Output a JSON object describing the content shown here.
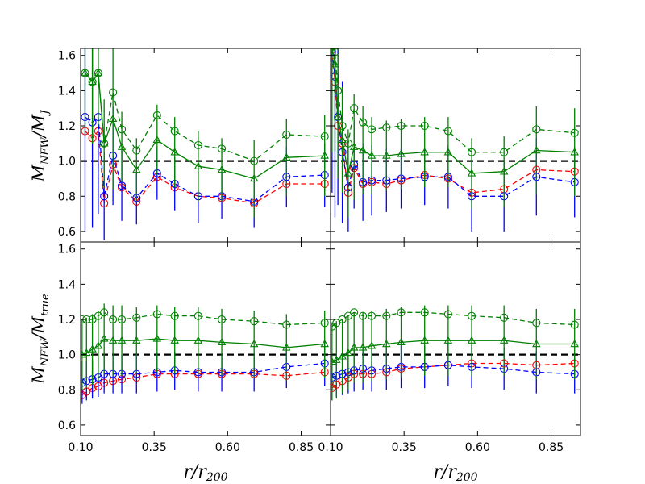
{
  "figure": {
    "x_tick_labels": [
      "0.10",
      "0.35",
      "0.60",
      "0.85"
    ],
    "y_tick_labels": [
      "0.6",
      "0.8",
      "1.0",
      "1.2",
      "1.4",
      "1.6"
    ],
    "ylabel_top": {
      "base": "M",
      "sub": "NFW",
      "slash": "/",
      "base2": "M",
      "sub2": "J"
    },
    "ylabel_bottom": {
      "base": "M",
      "sub": "NFW",
      "slash": "/",
      "base2": "M",
      "sub2": "true"
    },
    "xlabel": {
      "base": "r/r",
      "sub": "200"
    }
  },
  "chart_data": {
    "type": "line",
    "layout": "2x2 grid of panels sharing axes",
    "xlim": [
      0.1,
      0.95
    ],
    "ylim": [
      0.54,
      1.64
    ],
    "x_ticks": [
      0.1,
      0.35,
      0.6,
      0.85
    ],
    "y_ticks": [
      0.6,
      0.8,
      1.0,
      1.2,
      1.4,
      1.6
    ],
    "reference_line": {
      "y": 1.0,
      "style": "black dashed"
    },
    "colors": {
      "red": "#ff0000",
      "blue": "#0000ff",
      "green": "#008000"
    },
    "panels": [
      {
        "id": "top-left",
        "ylabel": "M_NFW/M_J",
        "x": [
          0.115,
          0.14,
          0.16,
          0.18,
          0.21,
          0.24,
          0.29,
          0.36,
          0.42,
          0.5,
          0.58,
          0.69,
          0.8,
          0.93
        ],
        "series": [
          {
            "name": "red circles dashed",
            "color": "#ff0000",
            "marker": "circle",
            "line": "dashed",
            "values": [
              1.17,
              1.13,
              1.17,
              0.76,
              0.98,
              0.85,
              0.77,
              0.91,
              0.85,
              0.8,
              0.79,
              0.76,
              0.87,
              0.87
            ],
            "err": []
          },
          {
            "name": "blue circles dashed",
            "color": "#0000ff",
            "marker": "circle",
            "line": "dashed",
            "values": [
              1.25,
              1.22,
              1.25,
              0.8,
              1.03,
              0.86,
              0.79,
              0.93,
              0.87,
              0.8,
              0.8,
              0.77,
              0.91,
              0.92
            ],
            "err": [
              0.65,
              0.6,
              0.55,
              0.25,
              0.28,
              0.2,
              0.15,
              0.15,
              0.15,
              0.15,
              0.13,
              0.15,
              0.17,
              0.18
            ]
          },
          {
            "name": "green circles dashed",
            "color": "#008000",
            "marker": "circle",
            "line": "dashed",
            "values": [
              1.5,
              1.45,
              1.5,
              1.1,
              1.39,
              1.18,
              1.06,
              1.26,
              1.17,
              1.09,
              1.07,
              1.0,
              1.15,
              1.14
            ],
            "err": []
          },
          {
            "name": "green triangles solid",
            "color": "#008000",
            "marker": "triangle",
            "line": "solid",
            "values": [
              1.5,
              1.45,
              1.5,
              1.1,
              1.24,
              1.08,
              0.95,
              1.12,
              1.05,
              0.97,
              0.95,
              0.9,
              1.02,
              1.03
            ],
            "err": [
              0.35,
              0.35,
              0.3,
              0.25,
              0.4,
              0.2,
              0.18,
              0.2,
              0.2,
              0.2,
              0.18,
              0.22,
              0.22,
              0.23
            ]
          }
        ]
      },
      {
        "id": "top-right",
        "ylabel": "",
        "x": [
          0.105,
          0.115,
          0.125,
          0.14,
          0.16,
          0.18,
          0.21,
          0.24,
          0.29,
          0.34,
          0.42,
          0.5,
          0.58,
          0.69,
          0.8,
          0.93
        ],
        "series": [
          {
            "name": "red circles dashed",
            "color": "#ff0000",
            "marker": "circle",
            "line": "dashed",
            "values": [
              1.6,
              1.45,
              1.2,
              1.1,
              0.82,
              0.96,
              0.87,
              0.88,
              0.87,
              0.89,
              0.92,
              0.9,
              0.82,
              0.84,
              0.95,
              0.94
            ],
            "err": []
          },
          {
            "name": "blue circles dashed",
            "color": "#0000ff",
            "marker": "circle",
            "line": "dashed",
            "values": [
              1.62,
              1.48,
              1.25,
              1.05,
              0.85,
              0.98,
              0.88,
              0.89,
              0.89,
              0.9,
              0.91,
              0.91,
              0.8,
              0.8,
              0.91,
              0.88
            ],
            "err": [
              0.8,
              0.8,
              0.5,
              0.4,
              0.25,
              0.25,
              0.22,
              0.2,
              0.18,
              0.17,
              0.16,
              0.18,
              0.2,
              0.2,
              0.22,
              0.2
            ]
          },
          {
            "name": "green circles dashed",
            "color": "#008000",
            "marker": "circle",
            "line": "dashed",
            "values": [
              1.65,
              1.62,
              1.4,
              1.2,
              1.1,
              1.3,
              1.22,
              1.18,
              1.19,
              1.2,
              1.2,
              1.17,
              1.05,
              1.05,
              1.18,
              1.16
            ],
            "err": []
          },
          {
            "name": "green triangles solid",
            "color": "#008000",
            "marker": "triangle",
            "line": "solid",
            "values": [
              1.65,
              1.55,
              1.25,
              1.12,
              0.93,
              1.08,
              1.06,
              1.03,
              1.03,
              1.04,
              1.05,
              1.05,
              0.93,
              0.94,
              1.06,
              1.05
            ],
            "err": [
              0.6,
              0.5,
              0.35,
              0.3,
              0.25,
              0.3,
              0.25,
              0.22,
              0.2,
              0.2,
              0.2,
              0.2,
              0.2,
              0.2,
              0.25,
              0.25
            ]
          }
        ]
      },
      {
        "id": "bottom-left",
        "ylabel": "M_NFW/M_true",
        "x": [
          0.105,
          0.12,
          0.14,
          0.16,
          0.18,
          0.21,
          0.24,
          0.29,
          0.36,
          0.42,
          0.5,
          0.58,
          0.69,
          0.8,
          0.93
        ],
        "series": [
          {
            "name": "red circles dashed",
            "color": "#ff0000",
            "marker": "circle",
            "line": "dashed",
            "values": [
              0.77,
              0.79,
              0.81,
              0.82,
              0.84,
              0.85,
              0.86,
              0.87,
              0.89,
              0.89,
              0.89,
              0.89,
              0.89,
              0.88,
              0.9
            ],
            "err": []
          },
          {
            "name": "blue circles dashed",
            "color": "#0000ff",
            "marker": "circle",
            "line": "dashed",
            "values": [
              0.84,
              0.85,
              0.86,
              0.87,
              0.89,
              0.89,
              0.89,
              0.89,
              0.9,
              0.91,
              0.9,
              0.9,
              0.9,
              0.93,
              0.95
            ],
            "err": [
              0.12,
              0.11,
              0.11,
              0.11,
              0.11,
              0.11,
              0.11,
              0.11,
              0.11,
              0.11,
              0.11,
              0.11,
              0.11,
              0.12,
              0.13
            ]
          },
          {
            "name": "green circles dashed",
            "color": "#008000",
            "marker": "circle",
            "line": "dashed",
            "values": [
              1.2,
              1.2,
              1.2,
              1.22,
              1.24,
              1.2,
              1.2,
              1.21,
              1.23,
              1.22,
              1.22,
              1.2,
              1.19,
              1.17,
              1.18
            ],
            "err": []
          },
          {
            "name": "green triangles solid",
            "color": "#008000",
            "marker": "triangle",
            "line": "solid",
            "values": [
              1.0,
              1.01,
              1.03,
              1.05,
              1.09,
              1.08,
              1.08,
              1.08,
              1.09,
              1.08,
              1.08,
              1.07,
              1.06,
              1.04,
              1.06
            ],
            "err": [
              0.2,
              0.2,
              0.2,
              0.2,
              0.2,
              0.2,
              0.2,
              0.19,
              0.19,
              0.19,
              0.19,
              0.19,
              0.19,
              0.19,
              0.19
            ]
          }
        ]
      },
      {
        "id": "bottom-right",
        "ylabel": "",
        "x": [
          0.105,
          0.12,
          0.14,
          0.16,
          0.18,
          0.21,
          0.24,
          0.29,
          0.34,
          0.42,
          0.5,
          0.58,
          0.69,
          0.8,
          0.93
        ],
        "series": [
          {
            "name": "red circles dashed",
            "color": "#ff0000",
            "marker": "circle",
            "line": "dashed",
            "values": [
              0.81,
              0.83,
              0.85,
              0.87,
              0.89,
              0.89,
              0.89,
              0.9,
              0.92,
              0.93,
              0.94,
              0.95,
              0.95,
              0.94,
              0.95
            ],
            "err": []
          },
          {
            "name": "blue circles dashed",
            "color": "#0000ff",
            "marker": "circle",
            "line": "dashed",
            "values": [
              0.87,
              0.88,
              0.89,
              0.9,
              0.91,
              0.92,
              0.91,
              0.92,
              0.93,
              0.93,
              0.94,
              0.93,
              0.92,
              0.9,
              0.89
            ],
            "err": [
              0.13,
              0.12,
              0.12,
              0.12,
              0.12,
              0.12,
              0.12,
              0.12,
              0.12,
              0.12,
              0.12,
              0.12,
              0.12,
              0.12,
              0.11
            ]
          },
          {
            "name": "green circles dashed",
            "color": "#008000",
            "marker": "circle",
            "line": "dashed",
            "values": [
              1.16,
              1.18,
              1.2,
              1.22,
              1.24,
              1.22,
              1.22,
              1.22,
              1.24,
              1.24,
              1.23,
              1.22,
              1.21,
              1.18,
              1.17
            ],
            "err": []
          },
          {
            "name": "green triangles solid",
            "color": "#008000",
            "marker": "triangle",
            "line": "solid",
            "values": [
              0.96,
              0.97,
              0.99,
              1.01,
              1.04,
              1.04,
              1.05,
              1.06,
              1.07,
              1.08,
              1.08,
              1.08,
              1.08,
              1.06,
              1.06
            ],
            "err": [
              0.22,
              0.22,
              0.21,
              0.21,
              0.2,
              0.2,
              0.2,
              0.2,
              0.2,
              0.2,
              0.2,
              0.2,
              0.2,
              0.2,
              0.2
            ]
          }
        ]
      }
    ]
  }
}
